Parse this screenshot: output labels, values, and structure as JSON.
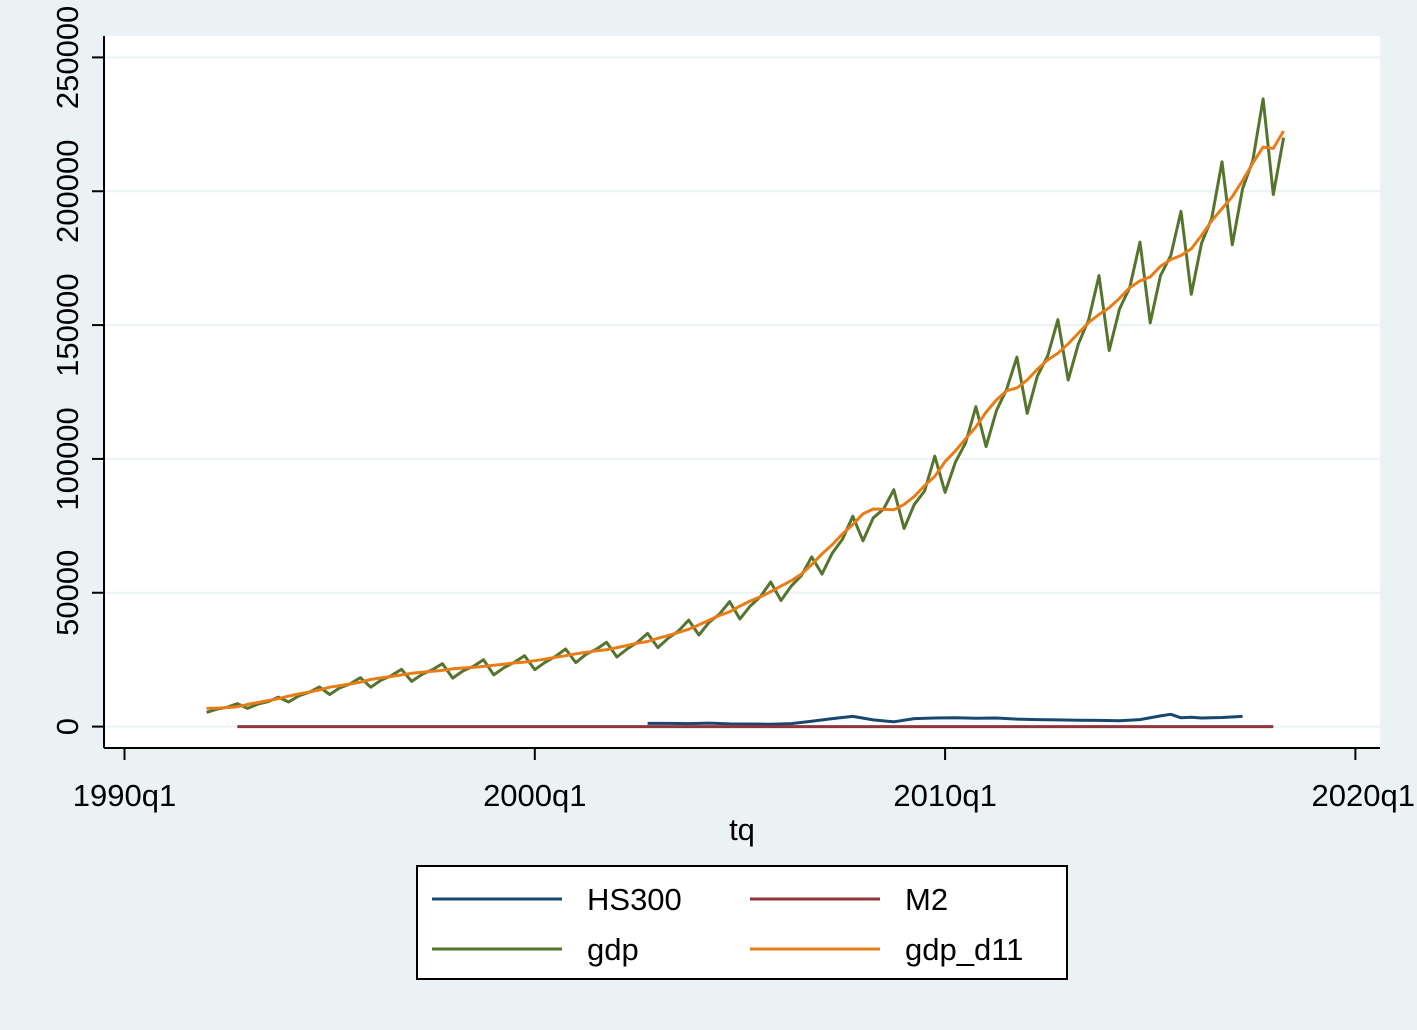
{
  "chart_data": {
    "type": "line",
    "xlabel": "tq",
    "ylabel": "",
    "title": "",
    "x_ticks": [
      "1990q1",
      "2000q1",
      "2010q1",
      "2020q1"
    ],
    "x_tick_values": [
      1990,
      2000,
      2010,
      2020
    ],
    "y_ticks": [
      "0",
      "50000",
      "100000",
      "150000",
      "200000",
      "250000"
    ],
    "y_tick_values": [
      0,
      50000,
      100000,
      150000,
      200000,
      250000
    ],
    "xlim": [
      1989.5,
      2020.6
    ],
    "ylim": [
      -8000,
      258000
    ],
    "grid": "horizontal",
    "legend_position": "bottom",
    "colors": {
      "background": "#eaf2f3",
      "plot_background": "#ffffff",
      "gridline": "#eaf2f3"
    },
    "series": [
      {
        "name": "HS300",
        "color": "#1a476f",
        "points": [
          [
            2002.75,
            1200
          ],
          [
            2003.25,
            1200
          ],
          [
            2003.75,
            1100
          ],
          [
            2004.25,
            1300
          ],
          [
            2004.75,
            1000
          ],
          [
            2005.25,
            950
          ],
          [
            2005.75,
            900
          ],
          [
            2006.25,
            1100
          ],
          [
            2006.75,
            2000
          ],
          [
            2007.25,
            3000
          ],
          [
            2007.75,
            3800
          ],
          [
            2008.25,
            2500
          ],
          [
            2008.75,
            1800
          ],
          [
            2009.25,
            3000
          ],
          [
            2009.75,
            3200
          ],
          [
            2010.25,
            3300
          ],
          [
            2010.75,
            3100
          ],
          [
            2011.25,
            3200
          ],
          [
            2011.75,
            2800
          ],
          [
            2012.25,
            2600
          ],
          [
            2012.75,
            2500
          ],
          [
            2013.25,
            2400
          ],
          [
            2013.75,
            2300
          ],
          [
            2014.25,
            2200
          ],
          [
            2014.75,
            2600
          ],
          [
            2015.25,
            4000
          ],
          [
            2015.5,
            4600
          ],
          [
            2015.75,
            3300
          ],
          [
            2016.0,
            3500
          ],
          [
            2016.25,
            3200
          ],
          [
            2016.75,
            3400
          ],
          [
            2017.25,
            3800
          ]
        ]
      },
      {
        "name": "M2",
        "color": "#90353b",
        "points": [
          [
            1992.75,
            0
          ],
          [
            2018.0,
            0
          ]
        ]
      },
      {
        "name": "gdp",
        "color": "#55752f",
        "points": [
          [
            1992.0,
            5300
          ],
          [
            1992.25,
            6500
          ],
          [
            1992.5,
            7200
          ],
          [
            1992.75,
            8600
          ],
          [
            1993.0,
            6800
          ],
          [
            1993.25,
            8400
          ],
          [
            1993.5,
            9300
          ],
          [
            1993.75,
            11000
          ],
          [
            1994.0,
            9200
          ],
          [
            1994.25,
            11500
          ],
          [
            1994.5,
            12800
          ],
          [
            1994.75,
            14800
          ],
          [
            1995.0,
            12000
          ],
          [
            1995.25,
            14500
          ],
          [
            1995.5,
            16000
          ],
          [
            1995.75,
            18300
          ],
          [
            1996.0,
            14700
          ],
          [
            1996.25,
            17300
          ],
          [
            1996.5,
            19000
          ],
          [
            1996.75,
            21400
          ],
          [
            1997.0,
            16900
          ],
          [
            1997.25,
            19500
          ],
          [
            1997.5,
            21200
          ],
          [
            1997.75,
            23500
          ],
          [
            1998.0,
            18100
          ],
          [
            1998.25,
            20800
          ],
          [
            1998.5,
            22500
          ],
          [
            1998.75,
            25000
          ],
          [
            1999.0,
            19300
          ],
          [
            1999.25,
            22000
          ],
          [
            1999.5,
            24000
          ],
          [
            1999.75,
            26500
          ],
          [
            2000.0,
            21300
          ],
          [
            2000.25,
            24000
          ],
          [
            2000.5,
            26200
          ],
          [
            2000.75,
            29000
          ],
          [
            2001.0,
            23900
          ],
          [
            2001.25,
            27000
          ],
          [
            2001.5,
            28900
          ],
          [
            2001.75,
            31500
          ],
          [
            2002.0,
            26000
          ],
          [
            2002.25,
            29000
          ],
          [
            2002.5,
            31500
          ],
          [
            2002.75,
            34800
          ],
          [
            2003.0,
            29500
          ],
          [
            2003.25,
            33000
          ],
          [
            2003.5,
            35700
          ],
          [
            2003.75,
            39800
          ],
          [
            2004.0,
            34200
          ],
          [
            2004.25,
            39000
          ],
          [
            2004.5,
            42000
          ],
          [
            2004.75,
            46700
          ],
          [
            2005.0,
            40200
          ],
          [
            2005.25,
            45000
          ],
          [
            2005.5,
            48600
          ],
          [
            2005.75,
            54000
          ],
          [
            2006.0,
            47100
          ],
          [
            2006.25,
            52500
          ],
          [
            2006.5,
            56500
          ],
          [
            2006.75,
            63400
          ],
          [
            2007.0,
            57000
          ],
          [
            2007.25,
            64800
          ],
          [
            2007.5,
            70000
          ],
          [
            2007.75,
            78600
          ],
          [
            2008.0,
            69400
          ],
          [
            2008.25,
            78000
          ],
          [
            2008.5,
            81200
          ],
          [
            2008.75,
            88500
          ],
          [
            2009.0,
            74000
          ],
          [
            2009.25,
            83000
          ],
          [
            2009.5,
            88000
          ],
          [
            2009.75,
            101000
          ],
          [
            2010.0,
            87500
          ],
          [
            2010.25,
            98800
          ],
          [
            2010.5,
            106000
          ],
          [
            2010.75,
            119500
          ],
          [
            2011.0,
            104600
          ],
          [
            2011.25,
            118000
          ],
          [
            2011.5,
            126000
          ],
          [
            2011.75,
            138000
          ],
          [
            2012.0,
            117000
          ],
          [
            2012.25,
            131000
          ],
          [
            2012.5,
            138500
          ],
          [
            2012.75,
            152000
          ],
          [
            2013.0,
            129500
          ],
          [
            2013.25,
            143000
          ],
          [
            2013.5,
            152000
          ],
          [
            2013.75,
            168500
          ],
          [
            2014.0,
            140500
          ],
          [
            2014.25,
            156000
          ],
          [
            2014.5,
            164000
          ],
          [
            2014.75,
            181000
          ],
          [
            2015.0,
            150800
          ],
          [
            2015.25,
            168500
          ],
          [
            2015.5,
            176000
          ],
          [
            2015.75,
            192500
          ],
          [
            2016.0,
            161500
          ],
          [
            2016.25,
            180500
          ],
          [
            2016.5,
            190000
          ],
          [
            2016.75,
            211000
          ],
          [
            2017.0,
            180000
          ],
          [
            2017.25,
            201000
          ],
          [
            2017.5,
            211500
          ],
          [
            2017.75,
            234500
          ],
          [
            2018.0,
            198800
          ],
          [
            2018.25,
            220000
          ]
        ]
      },
      {
        "name": "gdp_d11",
        "color": "#e87d18",
        "points": [
          [
            1992.0,
            6800
          ],
          [
            1992.25,
            6900
          ],
          [
            1992.5,
            7100
          ],
          [
            1992.75,
            7400
          ],
          [
            1993.0,
            8300
          ],
          [
            1993.25,
            9000
          ],
          [
            1993.5,
            9700
          ],
          [
            1993.75,
            10400
          ],
          [
            1994.0,
            11400
          ],
          [
            1994.25,
            12200
          ],
          [
            1994.5,
            12900
          ],
          [
            1994.75,
            13700
          ],
          [
            1995.0,
            14700
          ],
          [
            1995.25,
            15300
          ],
          [
            1995.5,
            15900
          ],
          [
            1995.75,
            16600
          ],
          [
            1996.0,
            17600
          ],
          [
            1996.25,
            18200
          ],
          [
            1996.5,
            18700
          ],
          [
            1996.75,
            19300
          ],
          [
            1997.0,
            19900
          ],
          [
            1997.25,
            20300
          ],
          [
            1997.5,
            20700
          ],
          [
            1997.75,
            21000
          ],
          [
            1998.0,
            21600
          ],
          [
            1998.25,
            21900
          ],
          [
            1998.5,
            22100
          ],
          [
            1998.75,
            22500
          ],
          [
            1999.0,
            22900
          ],
          [
            1999.25,
            23300
          ],
          [
            1999.5,
            23800
          ],
          [
            1999.75,
            24100
          ],
          [
            2000.0,
            24600
          ],
          [
            2000.25,
            25200
          ],
          [
            2000.5,
            25900
          ],
          [
            2000.75,
            26500
          ],
          [
            2001.0,
            27200
          ],
          [
            2001.25,
            27700
          ],
          [
            2001.5,
            28300
          ],
          [
            2001.75,
            28700
          ],
          [
            2002.0,
            29500
          ],
          [
            2002.25,
            30300
          ],
          [
            2002.5,
            31200
          ],
          [
            2002.75,
            31800
          ],
          [
            2003.0,
            33000
          ],
          [
            2003.25,
            34000
          ],
          [
            2003.5,
            35200
          ],
          [
            2003.75,
            36400
          ],
          [
            2004.0,
            38000
          ],
          [
            2004.25,
            39800
          ],
          [
            2004.5,
            41500
          ],
          [
            2004.75,
            42900
          ],
          [
            2005.0,
            45000
          ],
          [
            2005.25,
            46900
          ],
          [
            2005.5,
            48500
          ],
          [
            2005.75,
            50400
          ],
          [
            2006.0,
            52500
          ],
          [
            2006.25,
            54500
          ],
          [
            2006.5,
            57000
          ],
          [
            2006.75,
            60500
          ],
          [
            2007.0,
            64500
          ],
          [
            2007.25,
            68000
          ],
          [
            2007.5,
            72000
          ],
          [
            2007.75,
            75500
          ],
          [
            2008.0,
            79500
          ],
          [
            2008.25,
            81300
          ],
          [
            2008.5,
            81200
          ],
          [
            2008.75,
            81000
          ],
          [
            2009.0,
            83000
          ],
          [
            2009.25,
            86000
          ],
          [
            2009.5,
            90000
          ],
          [
            2009.75,
            93500
          ],
          [
            2010.0,
            99000
          ],
          [
            2010.25,
            103000
          ],
          [
            2010.5,
            107500
          ],
          [
            2010.75,
            112000
          ],
          [
            2011.0,
            117500
          ],
          [
            2011.25,
            122000
          ],
          [
            2011.5,
            125500
          ],
          [
            2011.75,
            126500
          ],
          [
            2012.0,
            129500
          ],
          [
            2012.25,
            133500
          ],
          [
            2012.5,
            137000
          ],
          [
            2012.75,
            139500
          ],
          [
            2013.0,
            143000
          ],
          [
            2013.25,
            147000
          ],
          [
            2013.5,
            151000
          ],
          [
            2013.75,
            154000
          ],
          [
            2014.0,
            156500
          ],
          [
            2014.25,
            160000
          ],
          [
            2014.5,
            164000
          ],
          [
            2014.75,
            166500
          ],
          [
            2015.0,
            168000
          ],
          [
            2015.25,
            172000
          ],
          [
            2015.5,
            174500
          ],
          [
            2015.75,
            176000
          ],
          [
            2016.0,
            178500
          ],
          [
            2016.25,
            183500
          ],
          [
            2016.5,
            189000
          ],
          [
            2016.75,
            193500
          ],
          [
            2017.0,
            198000
          ],
          [
            2017.25,
            204000
          ],
          [
            2017.5,
            210500
          ],
          [
            2017.75,
            216500
          ],
          [
            2018.0,
            216000
          ],
          [
            2018.25,
            222500
          ]
        ]
      }
    ]
  }
}
